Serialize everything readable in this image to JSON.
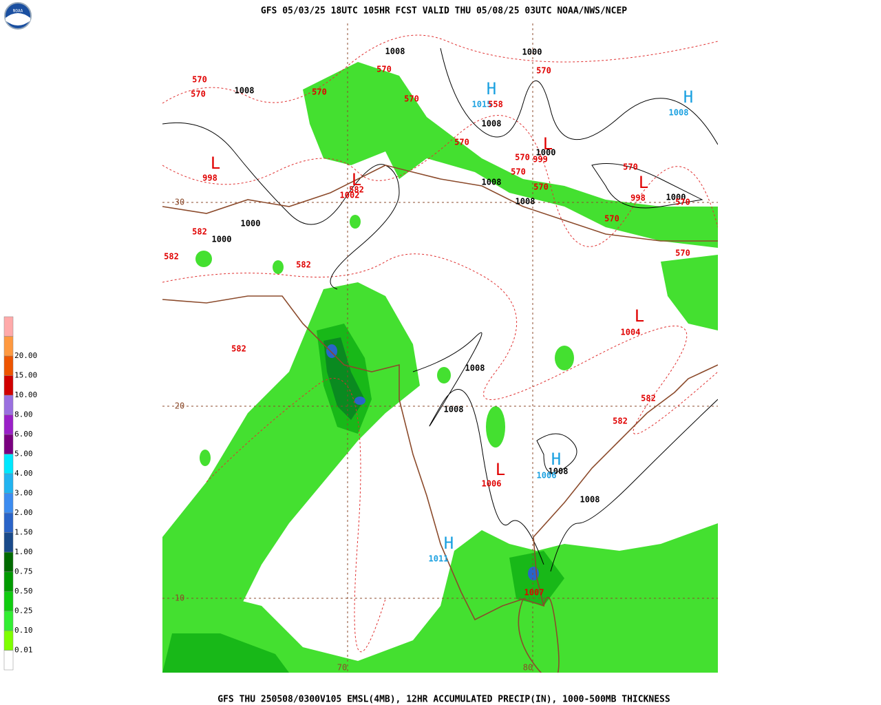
{
  "header": {
    "title": "GFS 05/03/25 18UTC 105HR FCST VALID THU 05/08/25 03UTC NOAA/NWS/NCEP",
    "logo_text": "NOAA"
  },
  "footer": {
    "text": "GFS THU 250508/0300V105 EMSL(4MB), 12HR ACCUMULATED PRECIP(IN), 1000-500MB THICKNESS"
  },
  "legend": {
    "labels": [
      "0.01",
      "0.10",
      "0.25",
      "0.50",
      "0.75",
      "1.00",
      "1.50",
      "2.00",
      "3.00",
      "4.00",
      "5.00",
      "6.00",
      "8.00",
      "10.00",
      "15.00",
      "20.00"
    ],
    "colors": [
      "#ffffff",
      "#7fff00",
      "#33ee33",
      "#10cc10",
      "#009a00",
      "#006a00",
      "#1a4a8a",
      "#2a64c8",
      "#3c8cf0",
      "#22b4f0",
      "#00e8ff",
      "#7a0080",
      "#9a20c8",
      "#9a70e0",
      "#d00000",
      "#ee5500",
      "#ff9940",
      "#ffaaaa"
    ]
  },
  "map": {
    "grid_labels": [
      "30",
      "20",
      "10",
      "70",
      "80"
    ],
    "labels": [
      {
        "text": "L",
        "color": "#e00000"
      },
      {
        "text": "L",
        "color": "#e00000"
      },
      {
        "text": "L",
        "color": "#e00000"
      },
      {
        "text": "L",
        "color": "#e00000"
      },
      {
        "text": "L",
        "color": "#e00000"
      },
      {
        "text": "L",
        "color": "#e00000"
      },
      {
        "text": "H",
        "color": "#1aa0e0"
      },
      {
        "text": "H",
        "color": "#1aa0e0"
      },
      {
        "text": "H",
        "color": "#1aa0e0"
      },
      {
        "text": "H",
        "color": "#1aa0e0"
      },
      {
        "text": "1008",
        "color": "#000000"
      },
      {
        "text": "1000",
        "color": "#000000"
      },
      {
        "text": "1008",
        "color": "#000000"
      },
      {
        "text": "1015",
        "color": "#1aa0e0"
      },
      {
        "text": "1008",
        "color": "#1aa0e0"
      },
      {
        "text": "1008",
        "color": "#000000"
      },
      {
        "text": "1000",
        "color": "#000000"
      },
      {
        "text": "999",
        "color": "#e00000"
      },
      {
        "text": "998",
        "color": "#e00000"
      },
      {
        "text": "1002",
        "color": "#e00000"
      },
      {
        "text": "1008",
        "color": "#000000"
      },
      {
        "text": "1008",
        "color": "#000000"
      },
      {
        "text": "998",
        "color": "#e00000"
      },
      {
        "text": "1000",
        "color": "#000000"
      },
      {
        "text": "1000",
        "color": "#000000"
      },
      {
        "text": "1000",
        "color": "#000000"
      },
      {
        "text": "1004",
        "color": "#e00000"
      },
      {
        "text": "1008",
        "color": "#000000"
      },
      {
        "text": "1008",
        "color": "#000000"
      },
      {
        "text": "1008",
        "color": "#000000"
      },
      {
        "text": "1006",
        "color": "#1aa0e0"
      },
      {
        "text": "1006",
        "color": "#e00000"
      },
      {
        "text": "1008",
        "color": "#000000"
      },
      {
        "text": "1011",
        "color": "#1aa0e0"
      },
      {
        "text": "1007",
        "color": "#e00000"
      },
      {
        "text": "570",
        "color": "#e00000"
      },
      {
        "text": "570",
        "color": "#e00000"
      },
      {
        "text": "570",
        "color": "#e00000"
      },
      {
        "text": "570",
        "color": "#e00000"
      },
      {
        "text": "570",
        "color": "#e00000"
      },
      {
        "text": "558",
        "color": "#e00000"
      },
      {
        "text": "570",
        "color": "#e00000"
      },
      {
        "text": "570",
        "color": "#e00000"
      },
      {
        "text": "570",
        "color": "#e00000"
      },
      {
        "text": "570",
        "color": "#e00000"
      },
      {
        "text": "570",
        "color": "#e00000"
      },
      {
        "text": "570",
        "color": "#e00000"
      },
      {
        "text": "570",
        "color": "#e00000"
      },
      {
        "text": "570",
        "color": "#e00000"
      },
      {
        "text": "570",
        "color": "#e00000"
      },
      {
        "text": "582",
        "color": "#e00000"
      },
      {
        "text": "582",
        "color": "#e00000"
      },
      {
        "text": "582",
        "color": "#e00000"
      },
      {
        "text": "582",
        "color": "#e00000"
      },
      {
        "text": "582",
        "color": "#e00000"
      },
      {
        "text": "582",
        "color": "#e00000"
      },
      {
        "text": "582",
        "color": "#e00000"
      }
    ]
  }
}
